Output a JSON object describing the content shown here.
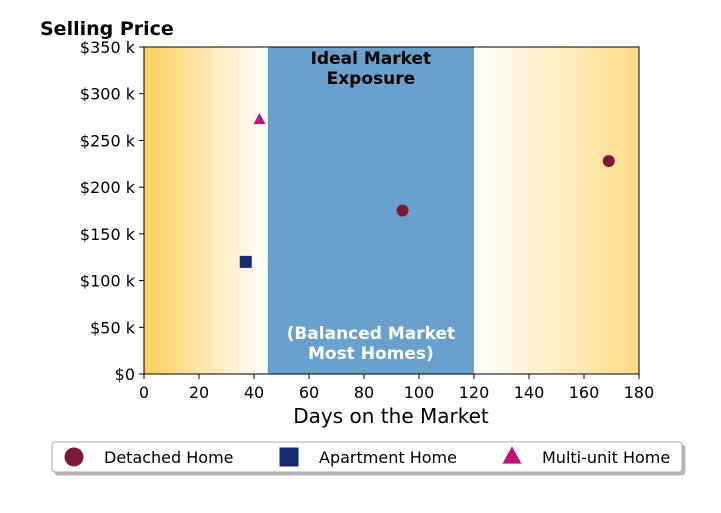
{
  "chart_data": {
    "type": "scatter",
    "title": "Selling Price",
    "xlabel": "Days on the Market",
    "ylabel": "",
    "xlim": [
      0,
      180
    ],
    "ylim": [
      0,
      350000
    ],
    "xticks": [
      0,
      20,
      40,
      60,
      80,
      100,
      120,
      140,
      160,
      180
    ],
    "yticks": [
      0,
      50000,
      100000,
      150000,
      200000,
      250000,
      300000,
      350000
    ],
    "ytick_labels": [
      "$0",
      "$50 k",
      "$100 k",
      "$150 k",
      "$200 k",
      "$250 k",
      "$300 k",
      "$350 k"
    ],
    "grid": false,
    "ideal_band": {
      "x_range": [
        45,
        120
      ],
      "label_top": [
        "Ideal Market",
        "Exposure"
      ],
      "label_bottom": [
        "(Balanced Market",
        "Most Homes)"
      ],
      "color": "#6aa0cc"
    },
    "side_gradient_color": "#ffcf5f",
    "series": [
      {
        "name": "Detached Home",
        "marker": "circle",
        "color": "#7a1a3a",
        "points": [
          {
            "x": 94,
            "y": 175000
          },
          {
            "x": 169,
            "y": 228000
          }
        ]
      },
      {
        "name": "Apartment Home",
        "marker": "square",
        "color": "#142a72",
        "points": [
          {
            "x": 37,
            "y": 120000
          }
        ]
      },
      {
        "name": "Multi-unit Home",
        "marker": "triangle",
        "color": "#c0127a",
        "points": [
          {
            "x": 42,
            "y": 272000
          }
        ]
      }
    ],
    "legend_position": "bottom"
  }
}
